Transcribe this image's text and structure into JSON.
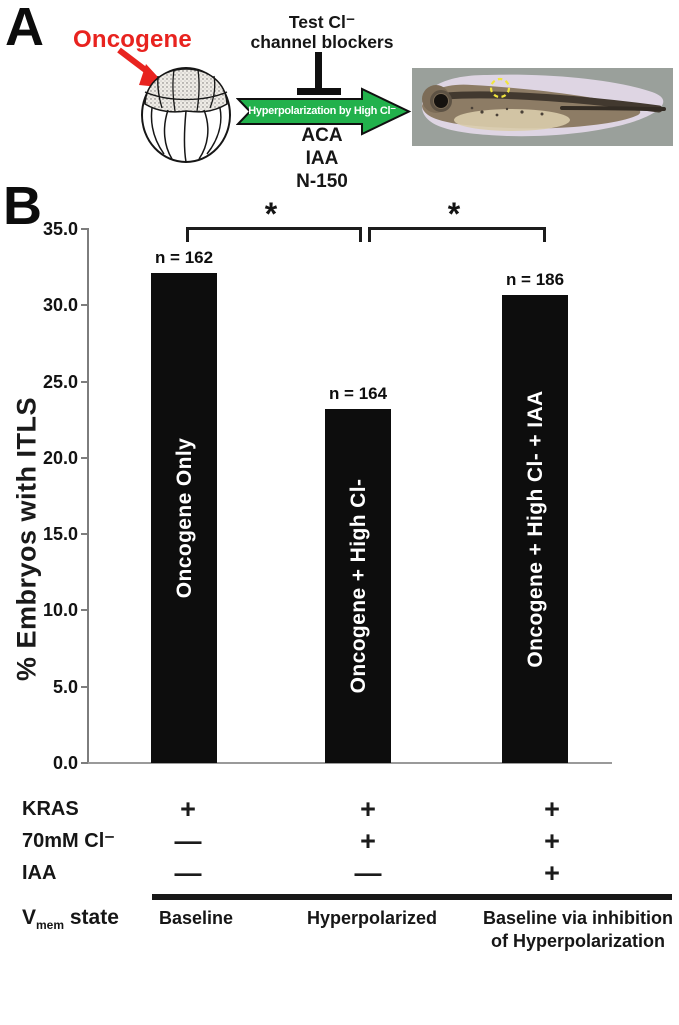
{
  "figure": {
    "panel_a_label": "A",
    "panel_b_label": "B"
  },
  "panelA": {
    "oncogene_label": "Oncogene",
    "blocker_test_label": "Test Cl⁻\nchannel blockers",
    "arrow_label": "Hyperpolarization by High Cl⁻",
    "chemicals": [
      "ACA",
      "IAA",
      "N-150"
    ],
    "arrow_color": "#22b14c",
    "oncogene_color": "#e8231f"
  },
  "chart_data": {
    "type": "bar",
    "categories": [
      "Oncogene Only",
      "Oncogene + High Cl-",
      "Oncogene + High Cl- + IAA"
    ],
    "values": [
      32.1,
      23.2,
      30.7
    ],
    "sample_sizes": [
      "n = 162",
      "n = 164",
      "n = 186"
    ],
    "ylabel": "% Embryos with ITLS",
    "ylim": [
      0,
      35
    ],
    "yticks": [
      35,
      30,
      25,
      20,
      15,
      10,
      5,
      0
    ],
    "ytick_labels": [
      "35.0",
      "30.0",
      "25.0",
      "20.0",
      "15.0",
      "10.0",
      "5.0",
      "0.0"
    ],
    "bar_color": "#0d0d0d",
    "grid": false,
    "significance": [
      {
        "from": 0,
        "to": 1,
        "label": "*"
      },
      {
        "from": 1,
        "to": 2,
        "label": "*"
      }
    ]
  },
  "condition_table": {
    "rows": [
      {
        "label": "KRAS",
        "values": [
          "+",
          "+",
          "+"
        ]
      },
      {
        "label": "70mM Cl⁻",
        "values": [
          "—",
          "+",
          "+"
        ]
      },
      {
        "label": "IAA",
        "values": [
          "—",
          "—",
          "+"
        ]
      }
    ],
    "vmem_row": {
      "label_main": "V",
      "label_sub": "mem",
      "label_suffix": " state",
      "values": [
        "Baseline",
        "Hyperpolarized",
        "Baseline via inhibition\nof Hyperpolarization"
      ]
    }
  }
}
